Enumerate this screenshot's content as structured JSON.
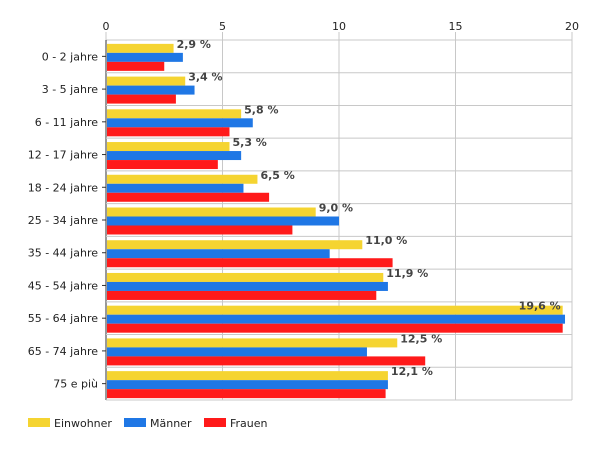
{
  "chart_data": {
    "type": "bar",
    "orientation": "horizontal",
    "categories": [
      "0 - 2 jahre",
      "3 - 5 jahre",
      "6 - 11 jahre",
      "12 - 17 jahre",
      "18 - 24 jahre",
      "25 - 34 jahre",
      "35 - 44 jahre",
      "45 - 54 jahre",
      "55 - 64 jahre",
      "65 - 74 jahre",
      "75 e più"
    ],
    "series": [
      {
        "name": "Einwohner",
        "color": "#f5d431",
        "values": [
          2.9,
          3.4,
          5.8,
          5.3,
          6.5,
          9.0,
          11.0,
          11.9,
          19.6,
          12.5,
          12.1
        ]
      },
      {
        "name": "Männer",
        "color": "#1f77e5",
        "values": [
          3.3,
          3.8,
          6.3,
          5.8,
          5.9,
          10.0,
          9.6,
          12.1,
          19.7,
          11.2,
          12.1
        ]
      },
      {
        "name": "Frauen",
        "color": "#ff1a1a",
        "values": [
          2.5,
          3.0,
          5.3,
          4.8,
          7.0,
          8.0,
          12.3,
          11.6,
          19.6,
          13.7,
          12.0
        ]
      }
    ],
    "data_labels": [
      "2,9 %",
      "3,4 %",
      "5,8 %",
      "5,3 %",
      "6,5 %",
      "9,0 %",
      "11,0 %",
      "11,9 %",
      "19,6 %",
      "12,5 %",
      "12,1 %"
    ],
    "xlim": [
      0,
      20
    ],
    "xticks": [
      0,
      5,
      10,
      15,
      20
    ],
    "tick_labels": [
      "0",
      "5",
      "10",
      "15",
      "20"
    ],
    "grid": true,
    "legend_position": "bottom-left"
  }
}
